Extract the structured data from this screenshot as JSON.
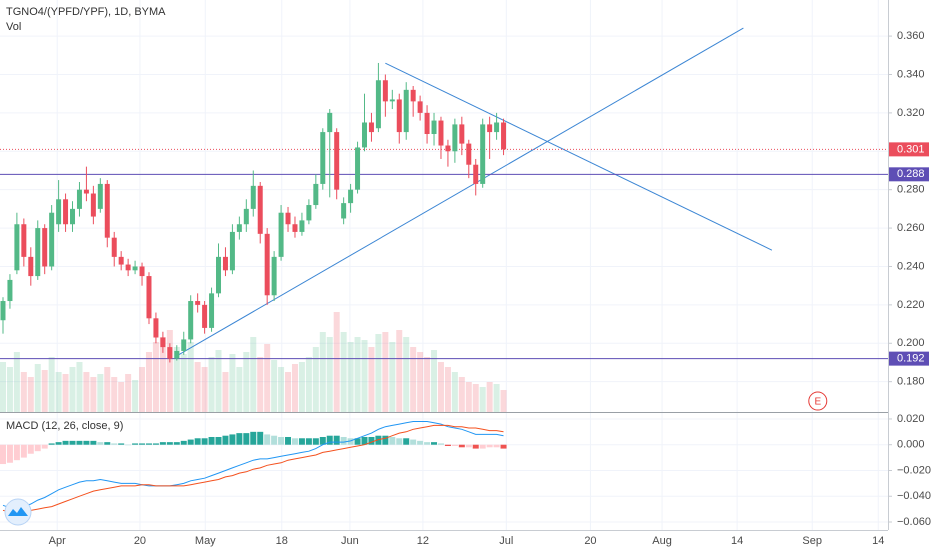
{
  "chart_data": {
    "type": "candlestick",
    "title": "TGNO4/(YPFD/YPF), 1D, BYMA",
    "volume_label": "Vol",
    "open": [
      0.212,
      0.222,
      0.238,
      0.262,
      0.245,
      0.235,
      0.26,
      0.24,
      0.262,
      0.275,
      0.262,
      0.27,
      0.28,
      0.278,
      0.27,
      0.283,
      0.255,
      0.245,
      0.241,
      0.238,
      0.24,
      0.235,
      0.213,
      0.203,
      0.198,
      0.192,
      0.196,
      0.202,
      0.222,
      0.22,
      0.208,
      0.226,
      0.245,
      0.238,
      0.258,
      0.262,
      0.27,
      0.282,
      0.257,
      0.225,
      0.245,
      0.268,
      0.262,
      0.258,
      0.264,
      0.272,
      0.283,
      0.31,
      0.31,
      0.265,
      0.273,
      0.28,
      0.302,
      0.315,
      0.312,
      0.337,
      0.326,
      0.327,
      0.31,
      0.332,
      0.326,
      0.32,
      0.309,
      0.316,
      0.303,
      0.3,
      0.314,
      0.304,
      0.293,
      0.283,
      0.314,
      0.31,
      0.315
    ],
    "high": [
      0.224,
      0.236,
      0.268,
      0.265,
      0.25,
      0.264,
      0.262,
      0.272,
      0.285,
      0.278,
      0.274,
      0.284,
      0.292,
      0.282,
      0.286,
      0.285,
      0.258,
      0.248,
      0.244,
      0.243,
      0.242,
      0.237,
      0.216,
      0.206,
      0.2,
      0.199,
      0.206,
      0.225,
      0.226,
      0.222,
      0.229,
      0.252,
      0.25,
      0.262,
      0.266,
      0.275,
      0.29,
      0.284,
      0.26,
      0.248,
      0.272,
      0.271,
      0.266,
      0.268,
      0.275,
      0.288,
      0.312,
      0.322,
      0.312,
      0.276,
      0.283,
      0.305,
      0.33,
      0.32,
      0.346,
      0.34,
      0.332,
      0.33,
      0.336,
      0.334,
      0.329,
      0.324,
      0.32,
      0.318,
      0.306,
      0.317,
      0.318,
      0.306,
      0.296,
      0.317,
      0.318,
      0.32,
      0.317
    ],
    "low": [
      0.205,
      0.218,
      0.236,
      0.24,
      0.23,
      0.233,
      0.236,
      0.238,
      0.258,
      0.258,
      0.258,
      0.266,
      0.274,
      0.262,
      0.268,
      0.25,
      0.24,
      0.238,
      0.235,
      0.236,
      0.23,
      0.21,
      0.2,
      0.195,
      0.19,
      0.191,
      0.194,
      0.2,
      0.216,
      0.205,
      0.206,
      0.224,
      0.235,
      0.236,
      0.254,
      0.258,
      0.266,
      0.252,
      0.22,
      0.222,
      0.243,
      0.258,
      0.255,
      0.256,
      0.262,
      0.27,
      0.28,
      0.276,
      0.275,
      0.262,
      0.268,
      0.278,
      0.3,
      0.305,
      0.31,
      0.318,
      0.322,
      0.304,
      0.306,
      0.318,
      0.316,
      0.304,
      0.303,
      0.296,
      0.292,
      0.294,
      0.298,
      0.286,
      0.277,
      0.281,
      0.296,
      0.306,
      0.298
    ],
    "close": [
      0.222,
      0.233,
      0.262,
      0.245,
      0.235,
      0.26,
      0.24,
      0.268,
      0.275,
      0.262,
      0.27,
      0.28,
      0.278,
      0.266,
      0.283,
      0.255,
      0.245,
      0.241,
      0.238,
      0.24,
      0.235,
      0.213,
      0.203,
      0.198,
      0.192,
      0.196,
      0.202,
      0.222,
      0.22,
      0.208,
      0.226,
      0.245,
      0.238,
      0.258,
      0.262,
      0.27,
      0.282,
      0.257,
      0.225,
      0.245,
      0.268,
      0.262,
      0.258,
      0.264,
      0.272,
      0.283,
      0.31,
      0.32,
      0.28,
      0.273,
      0.28,
      0.302,
      0.315,
      0.31,
      0.337,
      0.326,
      0.327,
      0.31,
      0.332,
      0.326,
      0.32,
      0.309,
      0.316,
      0.303,
      0.3,
      0.314,
      0.304,
      0.293,
      0.283,
      0.314,
      0.31,
      0.315,
      0.301
    ],
    "volume": [
      50,
      45,
      60,
      40,
      35,
      48,
      42,
      55,
      40,
      38,
      45,
      50,
      40,
      35,
      38,
      45,
      35,
      30,
      38,
      32,
      45,
      60,
      70,
      75,
      82,
      65,
      58,
      70,
      50,
      45,
      55,
      62,
      40,
      58,
      45,
      60,
      75,
      55,
      68,
      52,
      45,
      40,
      48,
      50,
      55,
      65,
      80,
      75,
      100,
      80,
      70,
      75,
      72,
      65,
      78,
      80,
      70,
      82,
      75,
      65,
      60,
      55,
      62,
      50,
      45,
      40,
      35,
      30,
      28,
      25,
      30,
      28,
      22
    ],
    "up_color": "#53b987",
    "down_color": "#eb4d5c",
    "grid": true,
    "xlim": [
      -0.43,
      127.3
    ],
    "xticks": [
      {
        "value": 7.8,
        "label": "Apr"
      },
      {
        "value": 19.7,
        "label": "20"
      },
      {
        "value": 29.1,
        "label": "May"
      },
      {
        "value": 40.1,
        "label": "18"
      },
      {
        "value": 49.9,
        "label": "Jun"
      },
      {
        "value": 60.4,
        "label": "12"
      },
      {
        "value": 72.4,
        "label": "Jul"
      },
      {
        "value": 84.5,
        "label": "20"
      },
      {
        "value": 94.8,
        "label": "Aug"
      },
      {
        "value": 105.6,
        "label": "14"
      },
      {
        "value": 116.4,
        "label": "Sep"
      },
      {
        "value": 125.9,
        "label": "14"
      }
    ],
    "ylim": [
      0.1642,
      0.3788
    ],
    "yticks": [
      {
        "value": 0.36,
        "label": "0.360"
      },
      {
        "value": 0.34,
        "label": "0.340"
      },
      {
        "value": 0.32,
        "label": "0.320"
      },
      {
        "value": 0.3,
        "label": "0.300"
      },
      {
        "value": 0.28,
        "label": "0.280"
      },
      {
        "value": 0.26,
        "label": "0.260"
      },
      {
        "value": 0.24,
        "label": "0.240"
      },
      {
        "value": 0.22,
        "label": "0.220"
      },
      {
        "value": 0.2,
        "label": "0.200"
      },
      {
        "value": 0.18,
        "label": "0.180"
      }
    ],
    "last_price": {
      "value": 0.301,
      "color": "#eb4d5c"
    },
    "horizontal_lines": [
      {
        "value": 0.288,
        "color": "#5e4eb5"
      },
      {
        "value": 0.192,
        "color": "#5e4eb5"
      }
    ],
    "trend_lines": [
      {
        "x": [
          55.0,
          110.6
        ],
        "y": [
          0.3459,
          0.2485
        ],
        "color": "#3c86d4"
      },
      {
        "x": [
          24.7,
          106.5
        ],
        "y": [
          0.1928,
          0.3642
        ],
        "color": "#3c86d4"
      }
    ],
    "event_marker": {
      "label": "E",
      "x": 117.2,
      "y": 0.1699,
      "color": "#e53935"
    },
    "macd": {
      "title": "MACD (12, 26, close, 9)",
      "ylim": [
        -0.0662,
        0.0254
      ],
      "yticks": [
        {
          "value": 0.02,
          "label": "0.020"
        },
        {
          "value": 0,
          "label": "0.000"
        },
        {
          "value": -0.02,
          "label": "−0.020"
        },
        {
          "value": -0.04,
          "label": "−0.040"
        },
        {
          "value": -0.06,
          "label": "−0.060"
        }
      ],
      "macd_line": {
        "color": "#2196f3",
        "values": [
          -0.047,
          -0.049,
          -0.05,
          -0.048,
          -0.046,
          -0.043,
          -0.041,
          -0.038,
          -0.035,
          -0.033,
          -0.031,
          -0.029,
          -0.028,
          -0.028,
          -0.027,
          -0.028,
          -0.029,
          -0.03,
          -0.03,
          -0.03,
          -0.031,
          -0.032,
          -0.032,
          -0.032,
          -0.032,
          -0.031,
          -0.03,
          -0.028,
          -0.027,
          -0.026,
          -0.024,
          -0.022,
          -0.02,
          -0.018,
          -0.016,
          -0.014,
          -0.012,
          -0.011,
          -0.011,
          -0.01,
          -0.009,
          -0.008,
          -0.007,
          -0.006,
          -0.005,
          -0.003,
          0.0,
          0.002,
          0.002,
          0.002,
          0.003,
          0.005,
          0.007,
          0.009,
          0.012,
          0.014,
          0.015,
          0.016,
          0.017,
          0.018,
          0.018,
          0.018,
          0.017,
          0.016,
          0.014,
          0.013,
          0.012,
          0.01,
          0.008,
          0.008,
          0.008,
          0.008,
          0.007
        ]
      },
      "signal_line": {
        "color": "#f4511e",
        "values": [
          -0.051,
          -0.052,
          -0.052,
          -0.052,
          -0.051,
          -0.05,
          -0.049,
          -0.048,
          -0.046,
          -0.044,
          -0.042,
          -0.04,
          -0.038,
          -0.036,
          -0.035,
          -0.034,
          -0.033,
          -0.032,
          -0.032,
          -0.032,
          -0.031,
          -0.031,
          -0.032,
          -0.032,
          -0.032,
          -0.032,
          -0.032,
          -0.031,
          -0.03,
          -0.029,
          -0.028,
          -0.027,
          -0.025,
          -0.024,
          -0.022,
          -0.021,
          -0.019,
          -0.018,
          -0.016,
          -0.015,
          -0.014,
          -0.012,
          -0.011,
          -0.01,
          -0.009,
          -0.008,
          -0.006,
          -0.005,
          -0.004,
          -0.003,
          -0.002,
          -0.001,
          0.0,
          0.002,
          0.004,
          0.005,
          0.007,
          0.009,
          0.01,
          0.012,
          0.013,
          0.014,
          0.015,
          0.015,
          0.015,
          0.014,
          0.014,
          0.013,
          0.013,
          0.012,
          0.011,
          0.011,
          0.01
        ]
      },
      "histogram": {
        "colors": [
          "#26a69a",
          "#b2dfdb",
          "#ffcdd2",
          "#ef5350"
        ],
        "values": [
          -0.015,
          -0.014,
          -0.012,
          -0.01,
          -0.007,
          -0.005,
          -0.003,
          0.001,
          0.002,
          0.003,
          0.003,
          0.003,
          0.003,
          0.003,
          0.002,
          0.002,
          0.001,
          0.001,
          0.0,
          0.001,
          0.001,
          0.001,
          0.001,
          0.002,
          0.002,
          0.002,
          0.003,
          0.004,
          0.005,
          0.005,
          0.006,
          0.006,
          0.007,
          0.008,
          0.009,
          0.009,
          0.01,
          0.01,
          0.008,
          0.007,
          0.006,
          0.006,
          0.005,
          0.005,
          0.005,
          0.005,
          0.006,
          0.007,
          0.007,
          0.006,
          0.005,
          0.005,
          0.006,
          0.006,
          0.007,
          0.007,
          0.006,
          0.005,
          0.005,
          0.004,
          0.003,
          0.002,
          0.002,
          0.001,
          -0.001,
          -0.001,
          -0.002,
          -0.002,
          -0.003,
          -0.003,
          -0.002,
          -0.002,
          -0.003
        ]
      }
    }
  }
}
